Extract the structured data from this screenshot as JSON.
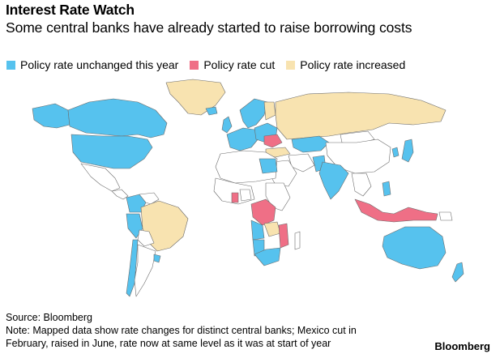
{
  "header": {
    "title": "Interest Rate Watch",
    "subtitle": "Some central banks have already started to raise borrowing costs"
  },
  "legend": [
    {
      "label": "Policy rate unchanged this year",
      "color": "#56c2ee"
    },
    {
      "label": "Policy rate cut",
      "color": "#ef6f86"
    },
    {
      "label": "Policy rate increased",
      "color": "#f8e3b0"
    }
  ],
  "map": {
    "background_land": "#ffffff",
    "border_color": "#6b6b6b"
  },
  "footer": {
    "source": "Source: Bloomberg",
    "note_line1": "Note: Mapped data show rate changes for distinct central banks; Mexico cut in",
    "note_line2": "February, raised in June, rate now at same level as it was at start of year"
  },
  "brand": {
    "label": "Bloomberg"
  }
}
